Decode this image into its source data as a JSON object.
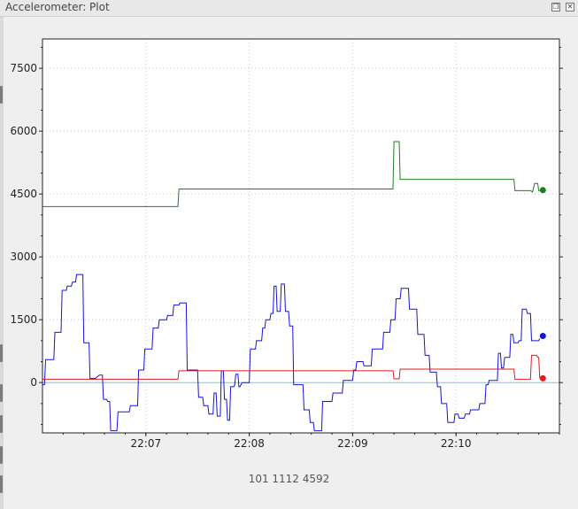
{
  "window": {
    "title": "Accelerometer: Plot",
    "buttons": [
      {
        "name": "restore-button",
        "glyph": "❐"
      },
      {
        "name": "close-button",
        "glyph": "✕"
      }
    ]
  },
  "readout": "101 1112 4592",
  "chart_data": {
    "type": "line",
    "title": "",
    "xlabel": "",
    "ylabel": "",
    "x_unit": "minutes (clock time)",
    "xlim": [
      6.0,
      11.0
    ],
    "ylim": [
      -1200,
      8200
    ],
    "y_ticks": [
      0,
      1500,
      3000,
      4500,
      6000,
      7500
    ],
    "x_ticks": [
      {
        "value": 7,
        "label": "22:07"
      },
      {
        "value": 8,
        "label": "22:08"
      },
      {
        "value": 9,
        "label": "22:09"
      },
      {
        "value": 10,
        "label": "22:10"
      }
    ],
    "grid": true,
    "zero_line": true,
    "series": [
      {
        "color": "#1f7d1f",
        "values": [
          [
            6.0,
            4200
          ],
          [
            7.31,
            4200
          ],
          [
            7.32,
            4620
          ],
          [
            9.39,
            4620
          ],
          [
            9.4,
            5750
          ],
          [
            9.45,
            5750
          ],
          [
            9.46,
            4850
          ],
          [
            10.56,
            4850
          ],
          [
            10.57,
            4580
          ],
          [
            10.72,
            4580
          ],
          [
            10.74,
            4550
          ],
          [
            10.76,
            4750
          ],
          [
            10.79,
            4750
          ],
          [
            10.8,
            4580
          ],
          [
            10.81,
            4580
          ]
        ],
        "marker": [
          10.84,
          4592
        ]
      },
      {
        "color": "#1414d8",
        "values": [
          [
            6.0,
            -50
          ],
          [
            6.02,
            -50
          ],
          [
            6.03,
            550
          ],
          [
            6.11,
            550
          ],
          [
            6.12,
            1200
          ],
          [
            6.18,
            1200
          ],
          [
            6.19,
            2200
          ],
          [
            6.23,
            2200
          ],
          [
            6.24,
            2300
          ],
          [
            6.28,
            2300
          ],
          [
            6.29,
            2400
          ],
          [
            6.32,
            2400
          ],
          [
            6.33,
            2580
          ],
          [
            6.39,
            2580
          ],
          [
            6.4,
            950
          ],
          [
            6.45,
            950
          ],
          [
            6.46,
            100
          ],
          [
            6.5,
            100
          ],
          [
            6.51,
            100
          ],
          [
            6.55,
            180
          ],
          [
            6.58,
            180
          ],
          [
            6.59,
            -400
          ],
          [
            6.62,
            -400
          ],
          [
            6.63,
            -450
          ],
          [
            6.65,
            -450
          ],
          [
            6.66,
            -1150
          ],
          [
            6.72,
            -1150
          ],
          [
            6.73,
            -700
          ],
          [
            6.84,
            -700
          ],
          [
            6.85,
            -550
          ],
          [
            6.92,
            -550
          ],
          [
            6.93,
            300
          ],
          [
            6.98,
            300
          ],
          [
            6.99,
            800
          ],
          [
            7.06,
            800
          ],
          [
            7.07,
            1300
          ],
          [
            7.12,
            1300
          ],
          [
            7.13,
            1500
          ],
          [
            7.2,
            1500
          ],
          [
            7.21,
            1600
          ],
          [
            7.26,
            1600
          ],
          [
            7.27,
            1850
          ],
          [
            7.32,
            1850
          ],
          [
            7.33,
            1900
          ],
          [
            7.39,
            1900
          ],
          [
            7.4,
            300
          ],
          [
            7.5,
            300
          ],
          [
            7.51,
            -350
          ],
          [
            7.55,
            -350
          ],
          [
            7.56,
            -550
          ],
          [
            7.6,
            -550
          ],
          [
            7.61,
            -750
          ],
          [
            7.65,
            -750
          ],
          [
            7.66,
            -250
          ],
          [
            7.68,
            -250
          ],
          [
            7.69,
            -800
          ],
          [
            7.72,
            -800
          ],
          [
            7.73,
            280
          ],
          [
            7.75,
            280
          ],
          [
            7.76,
            -400
          ],
          [
            7.78,
            -400
          ],
          [
            7.79,
            -900
          ],
          [
            7.81,
            -900
          ],
          [
            7.82,
            -100
          ],
          [
            7.85,
            -100
          ],
          [
            7.86,
            -50
          ],
          [
            7.87,
            200
          ],
          [
            7.89,
            200
          ],
          [
            7.9,
            -100
          ],
          [
            7.91,
            -100
          ],
          [
            7.93,
            0
          ],
          [
            8.0,
            0
          ],
          [
            8.01,
            800
          ],
          [
            8.06,
            800
          ],
          [
            8.07,
            1000
          ],
          [
            8.12,
            1000
          ],
          [
            8.13,
            1300
          ],
          [
            8.15,
            1300
          ],
          [
            8.16,
            1500
          ],
          [
            8.2,
            1500
          ],
          [
            8.21,
            1650
          ],
          [
            8.23,
            1650
          ],
          [
            8.24,
            2300
          ],
          [
            8.26,
            2300
          ],
          [
            8.27,
            1700
          ],
          [
            8.3,
            1700
          ],
          [
            8.31,
            2350
          ],
          [
            8.34,
            2350
          ],
          [
            8.35,
            1700
          ],
          [
            8.38,
            1700
          ],
          [
            8.39,
            1350
          ],
          [
            8.42,
            1350
          ],
          [
            8.43,
            -50
          ],
          [
            8.52,
            -50
          ],
          [
            8.53,
            -650
          ],
          [
            8.58,
            -650
          ],
          [
            8.59,
            -950
          ],
          [
            8.62,
            -950
          ],
          [
            8.63,
            -1150
          ],
          [
            8.7,
            -1150
          ],
          [
            8.71,
            -450
          ],
          [
            8.8,
            -450
          ],
          [
            8.81,
            -250
          ],
          [
            8.9,
            -250
          ],
          [
            8.91,
            50
          ],
          [
            9.0,
            50
          ],
          [
            9.01,
            300
          ],
          [
            9.03,
            300
          ],
          [
            9.04,
            500
          ],
          [
            9.1,
            500
          ],
          [
            9.11,
            400
          ],
          [
            9.18,
            400
          ],
          [
            9.19,
            800
          ],
          [
            9.29,
            800
          ],
          [
            9.3,
            1200
          ],
          [
            9.36,
            1200
          ],
          [
            9.37,
            1500
          ],
          [
            9.41,
            1500
          ],
          [
            9.42,
            2000
          ],
          [
            9.46,
            2000
          ],
          [
            9.47,
            2250
          ],
          [
            9.54,
            2250
          ],
          [
            9.55,
            1750
          ],
          [
            9.62,
            1750
          ],
          [
            9.63,
            1150
          ],
          [
            9.69,
            1150
          ],
          [
            9.7,
            650
          ],
          [
            9.74,
            650
          ],
          [
            9.75,
            250
          ],
          [
            9.81,
            250
          ],
          [
            9.82,
            -100
          ],
          [
            9.85,
            -100
          ],
          [
            9.86,
            -500
          ],
          [
            9.91,
            -500
          ],
          [
            9.92,
            -950
          ],
          [
            9.98,
            -950
          ],
          [
            9.99,
            -750
          ],
          [
            10.02,
            -750
          ],
          [
            10.03,
            -850
          ],
          [
            10.08,
            -850
          ],
          [
            10.09,
            -750
          ],
          [
            10.13,
            -750
          ],
          [
            10.14,
            -650
          ],
          [
            10.22,
            -650
          ],
          [
            10.23,
            -500
          ],
          [
            10.28,
            -500
          ],
          [
            10.29,
            -50
          ],
          [
            10.31,
            -50
          ],
          [
            10.32,
            50
          ],
          [
            10.4,
            50
          ],
          [
            10.41,
            700
          ],
          [
            10.43,
            700
          ],
          [
            10.44,
            350
          ],
          [
            10.46,
            350
          ],
          [
            10.47,
            600
          ],
          [
            10.52,
            600
          ],
          [
            10.53,
            1150
          ],
          [
            10.55,
            1150
          ],
          [
            10.56,
            950
          ],
          [
            10.6,
            950
          ],
          [
            10.61,
            1000
          ],
          [
            10.63,
            1000
          ],
          [
            10.64,
            1750
          ],
          [
            10.68,
            1750
          ],
          [
            10.69,
            1650
          ],
          [
            10.72,
            1650
          ],
          [
            10.73,
            1000
          ],
          [
            10.8,
            1000
          ],
          [
            10.81,
            1050
          ]
        ],
        "marker": [
          10.84,
          1112
        ]
      },
      {
        "color": "#e01c1c",
        "values": [
          [
            6.0,
            80
          ],
          [
            7.31,
            80
          ],
          [
            7.32,
            280
          ],
          [
            9.39,
            280
          ],
          [
            9.4,
            90
          ],
          [
            9.45,
            90
          ],
          [
            9.46,
            320
          ],
          [
            10.56,
            320
          ],
          [
            10.57,
            80
          ],
          [
            10.72,
            80
          ],
          [
            10.73,
            650
          ],
          [
            10.78,
            650
          ],
          [
            10.79,
            600
          ],
          [
            10.8,
            600
          ],
          [
            10.81,
            100
          ]
        ],
        "marker": [
          10.84,
          101
        ]
      }
    ]
  }
}
